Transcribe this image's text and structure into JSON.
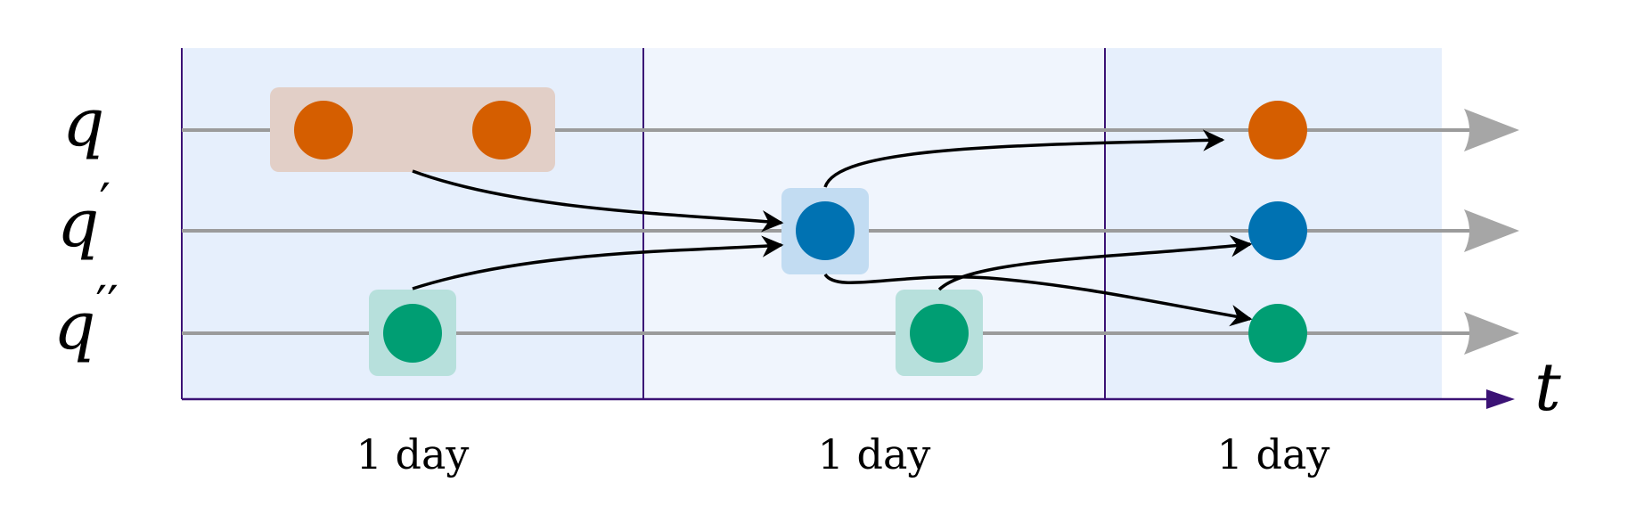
{
  "rows": [
    {
      "base": "q",
      "primes": ""
    },
    {
      "base": "q",
      "primes": "′"
    },
    {
      "base": "q",
      "primes": "′′"
    }
  ],
  "time_axis_label": "t",
  "intervals": [
    {
      "label": "1 day"
    },
    {
      "label": "1 day"
    },
    {
      "label": "1 day"
    }
  ],
  "colors": {
    "band_1": "#e6effc",
    "band_2": "#f0f5fd",
    "band_3": "#e6effc",
    "divider": "#3b1275",
    "axis": "#3b1275",
    "track": "#9b9b9b",
    "q_node": "#d55e00",
    "q_box": "#e2cfc7",
    "q1_node": "#0072b2",
    "q1_box": "#c2dcf2",
    "q2_node": "#009e73",
    "q2_box": "#b7e0dc",
    "edge": "#000000"
  }
}
